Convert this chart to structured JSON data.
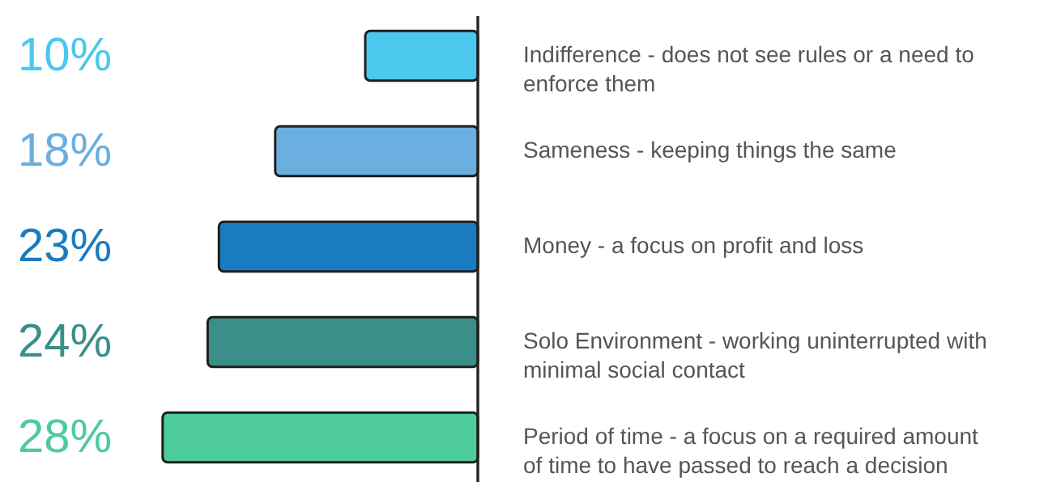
{
  "chart_data": {
    "type": "bar",
    "orientation": "horizontal",
    "categories": [
      "Indifference - does not see rules or a need to enforce them",
      "Sameness - keeping things the same",
      "Money - a focus on profit and loss",
      "Solo Environment - working uninterrupted with minimal social contact",
      "Period of time - a focus on a required amount of time to have passed to reach a decision"
    ],
    "values": [
      10,
      18,
      23,
      24,
      28
    ],
    "colors": [
      "#4cc8ef",
      "#6aafdf",
      "#1a7cc0",
      "#3a8f89",
      "#4ecb9c"
    ],
    "value_labels": [
      "10%",
      "18%",
      "23%",
      "24%",
      "28%"
    ]
  }
}
